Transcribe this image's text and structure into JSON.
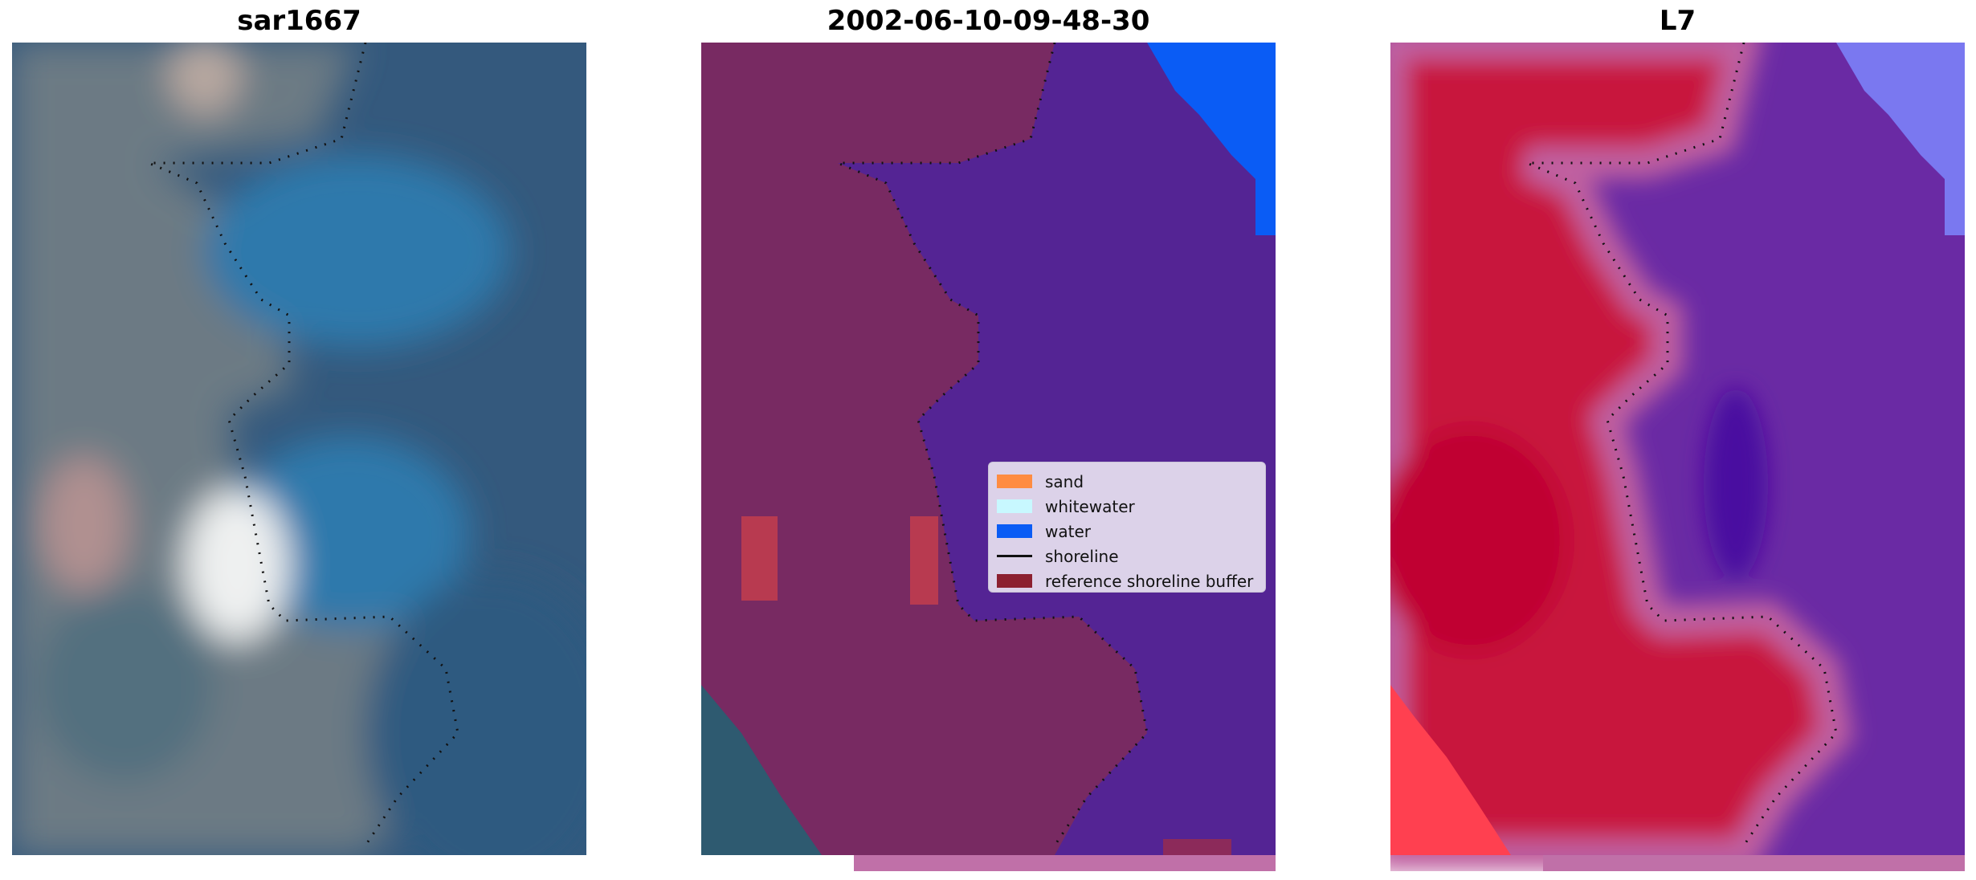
{
  "panels": [
    {
      "title": "sar1667"
    },
    {
      "title": "2002-06-10-09-48-30"
    },
    {
      "title": "L7"
    }
  ],
  "legend": {
    "items": [
      {
        "label": "sand",
        "kind": "swatch",
        "color": "#ff8c42"
      },
      {
        "label": "whitewater",
        "kind": "swatch",
        "color": "#c8f8ff"
      },
      {
        "label": "water",
        "kind": "swatch",
        "color": "#0a5cf5"
      },
      {
        "label": "shoreline",
        "kind": "line",
        "color": "#111111"
      },
      {
        "label": "reference shoreline buffer",
        "kind": "swatch",
        "color": "#8c2030"
      }
    ]
  },
  "colors": {
    "sea_rgb": "#2f5f8c",
    "land_rgb": "#6f7d86",
    "classified_land": "#7a2a62",
    "classified_water": "#542494",
    "classified_nodata": "#0a5cf5",
    "index_land": "#c8183e",
    "index_water": "#6a2aa4",
    "index_strip": "#d070b0"
  }
}
